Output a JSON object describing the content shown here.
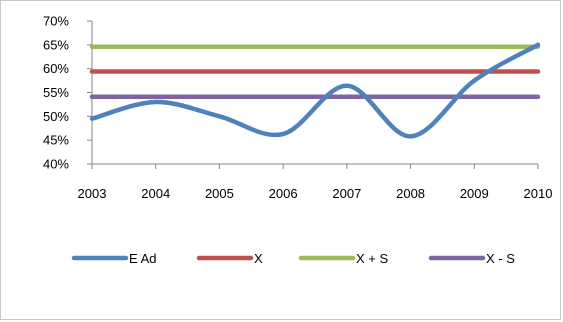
{
  "chart_data": {
    "type": "line",
    "title": "",
    "xlabel": "",
    "ylabel": "",
    "categories": [
      "2003",
      "2004",
      "2005",
      "2006",
      "2007",
      "2008",
      "2009",
      "2010"
    ],
    "ylim": [
      0.4,
      0.7
    ],
    "y_ticks": [
      0.4,
      0.45,
      0.5,
      0.55,
      0.6,
      0.65,
      0.7
    ],
    "y_tick_labels": [
      "40%",
      "45%",
      "50%",
      "55%",
      "60%",
      "65%",
      "70%"
    ],
    "grid": false,
    "smooth": true,
    "legend_position": "bottom",
    "series": [
      {
        "name": "E Ad",
        "color": "#4f81bd",
        "values": [
          0.495,
          0.53,
          0.5,
          0.463,
          0.564,
          0.458,
          0.575,
          0.65
        ]
      },
      {
        "name": "X",
        "color": "#c0504d",
        "values": [
          0.594,
          0.594,
          0.594,
          0.594,
          0.594,
          0.594,
          0.594,
          0.594
        ]
      },
      {
        "name": "X + S",
        "color": "#9bbb59",
        "values": [
          0.646,
          0.646,
          0.646,
          0.646,
          0.646,
          0.646,
          0.646,
          0.646
        ]
      },
      {
        "name": "X - S",
        "color": "#8064a2",
        "values": [
          0.541,
          0.541,
          0.541,
          0.541,
          0.541,
          0.541,
          0.541,
          0.541
        ]
      }
    ]
  }
}
